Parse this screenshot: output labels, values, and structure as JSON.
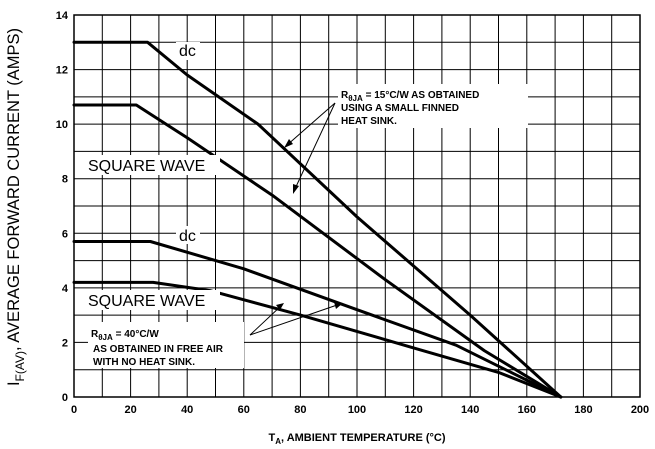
{
  "chart_data": {
    "type": "line",
    "xlabel": {
      "main": "T",
      "sub": "A",
      "rest": ", AMBIENT TEMPERATURE (°C)"
    },
    "ylabel": {
      "main": "I",
      "sub": "F(AV)",
      "rest": ", AVERAGE FORWARD CURRENT (AMPS)"
    },
    "xlim": [
      0,
      200
    ],
    "ylim": [
      0,
      14
    ],
    "xticks": [
      0,
      20,
      40,
      60,
      80,
      100,
      120,
      140,
      160,
      180,
      200
    ],
    "yticks": [
      0,
      2,
      4,
      6,
      8,
      10,
      12,
      14
    ],
    "x_gridlines_every": 10,
    "y_gridlines_every": 1,
    "grid": true,
    "series": [
      {
        "name": "dc",
        "x": [
          0,
          26,
          40,
          65,
          100,
          140,
          172
        ],
        "y": [
          13.0,
          13.0,
          11.8,
          10.0,
          6.6,
          3.0,
          0.0
        ]
      },
      {
        "name": "SQUARE WAVE",
        "x": [
          0,
          22,
          40,
          70,
          110,
          145,
          172
        ],
        "y": [
          10.7,
          10.7,
          9.5,
          7.4,
          4.3,
          1.7,
          0.0
        ]
      },
      {
        "name": "dc",
        "x": [
          0,
          27,
          60,
          100,
          135,
          172
        ],
        "y": [
          5.7,
          5.7,
          4.7,
          3.2,
          1.9,
          0.0
        ]
      },
      {
        "name": "SQUARE WAVE",
        "x": [
          0,
          28,
          48,
          80,
          120,
          150,
          172
        ],
        "y": [
          4.2,
          4.2,
          3.9,
          3.0,
          1.8,
          0.9,
          0.0
        ]
      }
    ],
    "annotations": [
      {
        "id": "dc-hs",
        "text": "dc"
      },
      {
        "id": "sq-hs",
        "text": "SQUARE WAVE"
      },
      {
        "id": "dc-fa",
        "text": "dc"
      },
      {
        "id": "sq-fa",
        "text": "SQUARE WAVE"
      }
    ],
    "notes": [
      {
        "id": "heat-sink",
        "r": "R",
        "sub": "θJA",
        "lines": [
          " = 15°C/W AS OBTAINED",
          "USING A SMALL FINNED",
          "HEAT SINK."
        ]
      },
      {
        "id": "free-air",
        "r": "R",
        "sub": "θJA",
        "lines": [
          " = 40°C/W",
          "AS OBTAINED IN FREE AIR",
          "WITH NO HEAT SINK."
        ]
      }
    ]
  }
}
